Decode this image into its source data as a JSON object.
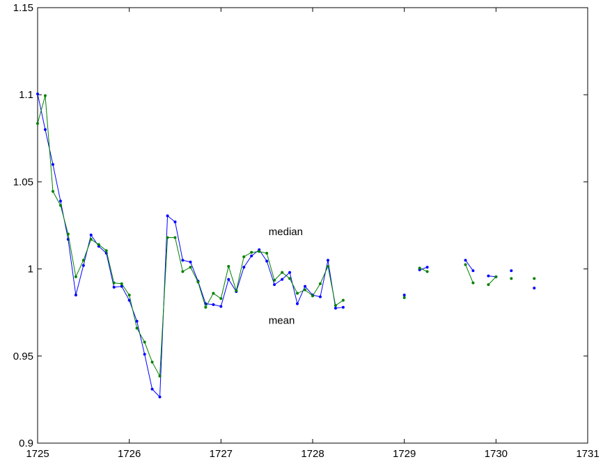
{
  "chart_data": {
    "type": "line",
    "title": "",
    "xlabel": "",
    "ylabel": "",
    "xlim": [
      1725,
      1731
    ],
    "ylim": [
      0.9,
      1.15
    ],
    "xticks": [
      1725,
      1726,
      1727,
      1728,
      1729,
      1730,
      1731
    ],
    "xtick_labels": [
      "1725",
      "1726",
      "1727",
      "1728",
      "1729",
      "1730",
      "1731"
    ],
    "yticks": [
      0.9,
      0.95,
      1,
      1.05,
      1.1,
      1.15
    ],
    "ytick_labels": [
      "0.9",
      "0.95",
      "1",
      "1.05",
      "1.1",
      "1.15"
    ],
    "grid": false,
    "annotations": [
      {
        "text": "median",
        "x": 1727.52,
        "y": 1.0195
      },
      {
        "text": "mean",
        "x": 1727.52,
        "y": 0.9685
      }
    ],
    "series": [
      {
        "color": "#0000ff",
        "segments": [
          [
            [
              1725.0,
              1.1005
            ],
            [
              1725.083,
              1.08
            ],
            [
              1725.167,
              1.06
            ],
            [
              1725.25,
              1.039
            ],
            [
              1725.333,
              1.017
            ],
            [
              1725.417,
              0.985
            ],
            [
              1725.5,
              1.002
            ],
            [
              1725.583,
              1.0195
            ],
            [
              1725.667,
              1.013
            ],
            [
              1725.75,
              1.009
            ],
            [
              1725.833,
              0.9895
            ],
            [
              1725.917,
              0.99
            ],
            [
              1726.0,
              0.982
            ],
            [
              1726.083,
              0.97
            ],
            [
              1726.167,
              0.951
            ],
            [
              1726.25,
              0.931
            ],
            [
              1726.333,
              0.9265
            ],
            [
              1726.417,
              1.0305
            ],
            [
              1726.5,
              1.027
            ],
            [
              1726.583,
              1.005
            ],
            [
              1726.667,
              1.004
            ],
            [
              1726.75,
              0.993
            ],
            [
              1726.833,
              0.98
            ],
            [
              1726.917,
              0.9795
            ],
            [
              1727.0,
              0.9785
            ],
            [
              1727.083,
              0.994
            ],
            [
              1727.167,
              0.987
            ],
            [
              1727.25,
              1.001
            ],
            [
              1727.333,
              1.0075
            ],
            [
              1727.417,
              1.011
            ],
            [
              1727.5,
              1.0045
            ],
            [
              1727.583,
              0.991
            ],
            [
              1727.667,
              0.994
            ],
            [
              1727.75,
              0.998
            ],
            [
              1727.833,
              0.98
            ],
            [
              1727.917,
              0.99
            ],
            [
              1728.0,
              0.985
            ],
            [
              1728.083,
              0.984
            ],
            [
              1728.167,
              1.005
            ],
            [
              1728.25,
              0.9775
            ],
            [
              1728.333,
              0.978
            ]
          ],
          [
            [
              1729.0,
              0.985
            ]
          ],
          [
            [
              1729.167,
              0.9995
            ],
            [
              1729.25,
              1.001
            ]
          ],
          [
            [
              1729.667,
              1.005
            ],
            [
              1729.75,
              0.999
            ]
          ],
          [
            [
              1729.917,
              0.996
            ],
            [
              1730.0,
              0.9955
            ]
          ],
          [
            [
              1730.167,
              0.999
            ]
          ],
          [
            [
              1730.417,
              0.989
            ]
          ]
        ]
      },
      {
        "color": "#008000",
        "segments": [
          [
            [
              1725.0,
              1.0835
            ],
            [
              1725.083,
              1.0995
            ],
            [
              1725.167,
              1.0445
            ],
            [
              1725.25,
              1.0365
            ],
            [
              1725.333,
              1.02
            ],
            [
              1725.417,
              0.9955
            ],
            [
              1725.5,
              1.005
            ],
            [
              1725.583,
              1.017
            ],
            [
              1725.667,
              1.014
            ],
            [
              1725.75,
              1.0105
            ],
            [
              1725.833,
              0.992
            ],
            [
              1725.917,
              0.9915
            ],
            [
              1726.0,
              0.985
            ],
            [
              1726.083,
              0.966
            ],
            [
              1726.167,
              0.958
            ],
            [
              1726.25,
              0.9465
            ],
            [
              1726.333,
              0.9385
            ],
            [
              1726.417,
              1.018
            ],
            [
              1726.5,
              1.018
            ],
            [
              1726.583,
              0.9985
            ],
            [
              1726.667,
              1.001
            ],
            [
              1726.75,
              0.9925
            ],
            [
              1726.833,
              0.978
            ],
            [
              1726.917,
              0.986
            ],
            [
              1727.0,
              0.983
            ],
            [
              1727.083,
              1.0015
            ],
            [
              1727.167,
              0.9875
            ],
            [
              1727.25,
              1.007
            ],
            [
              1727.333,
              1.0095
            ],
            [
              1727.417,
              1.01
            ],
            [
              1727.5,
              1.009
            ],
            [
              1727.583,
              0.9935
            ],
            [
              1727.667,
              0.998
            ],
            [
              1727.75,
              0.9945
            ],
            [
              1727.833,
              0.986
            ],
            [
              1727.917,
              0.988
            ],
            [
              1728.0,
              0.9845
            ],
            [
              1728.083,
              0.9915
            ],
            [
              1728.167,
              1.0015
            ],
            [
              1728.25,
              0.979
            ],
            [
              1728.333,
              0.982
            ]
          ],
          [
            [
              1729.0,
              0.9835
            ]
          ],
          [
            [
              1729.167,
              1.0005
            ],
            [
              1729.25,
              0.9985
            ]
          ],
          [
            [
              1729.667,
              1.0025
            ],
            [
              1729.75,
              0.992
            ]
          ],
          [
            [
              1729.917,
              0.991
            ],
            [
              1730.0,
              0.9955
            ]
          ],
          [
            [
              1730.167,
              0.9945
            ]
          ],
          [
            [
              1730.417,
              0.9945
            ]
          ]
        ]
      }
    ]
  }
}
